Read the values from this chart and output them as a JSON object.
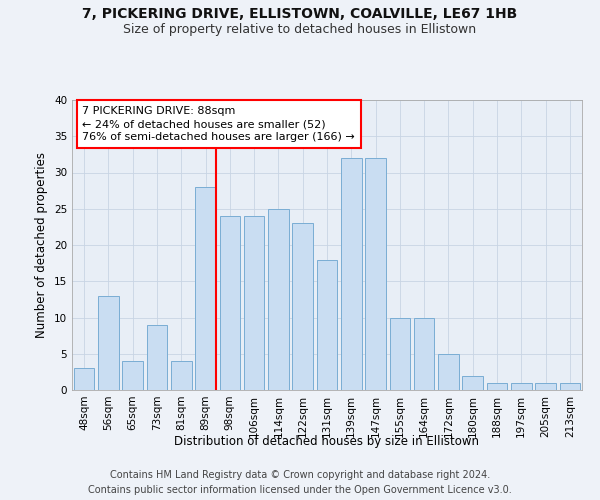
{
  "title": "7, PICKERING DRIVE, ELLISTOWN, COALVILLE, LE67 1HB",
  "subtitle": "Size of property relative to detached houses in Ellistown",
  "xlabel": "Distribution of detached houses by size in Ellistown",
  "ylabel": "Number of detached properties",
  "categories": [
    "48sqm",
    "56sqm",
    "65sqm",
    "73sqm",
    "81sqm",
    "89sqm",
    "98sqm",
    "106sqm",
    "114sqm",
    "122sqm",
    "131sqm",
    "139sqm",
    "147sqm",
    "155sqm",
    "164sqm",
    "172sqm",
    "180sqm",
    "188sqm",
    "197sqm",
    "205sqm",
    "213sqm"
  ],
  "values": [
    3,
    13,
    4,
    9,
    4,
    28,
    24,
    24,
    25,
    23,
    18,
    32,
    32,
    10,
    10,
    5,
    2,
    1,
    1,
    1,
    1
  ],
  "bar_color": "#c9ddf2",
  "bar_edge_color": "#7aadd4",
  "red_line_index": 5,
  "red_line_label": "7 PICKERING DRIVE: 88sqm",
  "annotation_line2": "← 24% of detached houses are smaller (52)",
  "annotation_line3": "76% of semi-detached houses are larger (166) →",
  "ylim": [
    0,
    40
  ],
  "yticks": [
    0,
    5,
    10,
    15,
    20,
    25,
    30,
    35,
    40
  ],
  "footer_line1": "Contains HM Land Registry data © Crown copyright and database right 2024.",
  "footer_line2": "Contains public sector information licensed under the Open Government Licence v3.0.",
  "background_color": "#eef2f8",
  "plot_bg_color": "#e8eef6",
  "grid_color": "#c8d4e4",
  "title_fontsize": 10,
  "subtitle_fontsize": 9,
  "axis_label_fontsize": 8.5,
  "tick_fontsize": 7.5,
  "footer_fontsize": 7,
  "annotation_fontsize": 8
}
